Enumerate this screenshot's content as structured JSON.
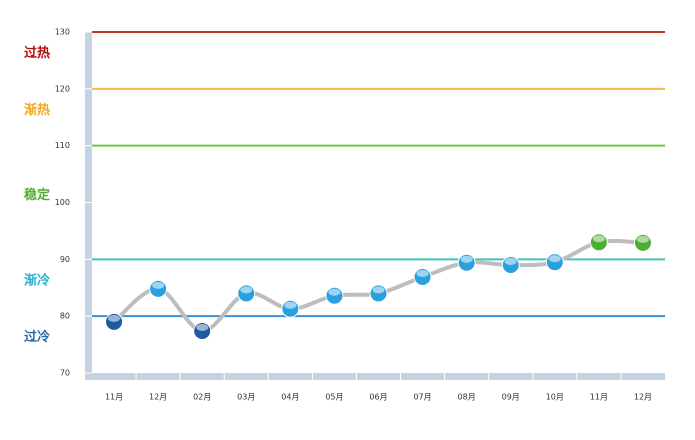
{
  "chart_data": {
    "type": "line",
    "categories": [
      "11月",
      "12月",
      "02月",
      "03月",
      "04月",
      "05月",
      "06月",
      "07月",
      "08月",
      "09月",
      "10月",
      "11月",
      "12月"
    ],
    "values": [
      79,
      84.8,
      77.4,
      84,
      81.3,
      83.6,
      84,
      86.9,
      89.4,
      89,
      89.5,
      93,
      92.9
    ],
    "line_color": "#bdbdbd",
    "ylim": [
      70,
      130
    ],
    "yticks": [
      70,
      80,
      90,
      100,
      110,
      120,
      130
    ],
    "zones": [
      {
        "label": "过冷",
        "upper": 80,
        "line_color": "#3a8fd8",
        "label_color": "#2a6aa8",
        "marker_color": "#1d5aa0"
      },
      {
        "label": "渐冷",
        "upper": 90,
        "line_color": "#3cc8b0",
        "label_color": "#2aaed0",
        "marker_color": "#2aa0e0"
      },
      {
        "label": "稳定",
        "upper": 110,
        "line_color": "#6cc644",
        "label_color": "#4fb030",
        "marker_color": "#4caf35"
      },
      {
        "label": "渐热",
        "upper": 120,
        "line_color": "#f5b848",
        "label_color": "#f0a820",
        "marker_color": "#f0a820"
      },
      {
        "label": "过热",
        "upper": 130,
        "line_color": "#c0392b",
        "label_color": "#b01010",
        "marker_color": "#c0392b"
      }
    ]
  }
}
